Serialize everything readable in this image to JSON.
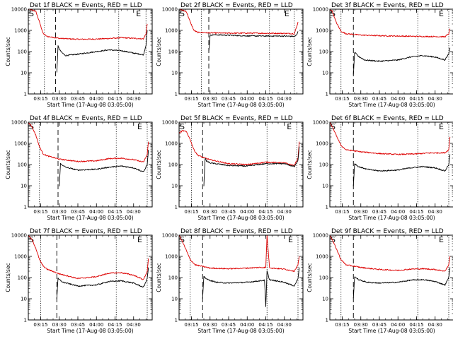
{
  "panel_titles": [
    "Det 1f BLACK = Events, RED = LLD",
    "Det 2f BLACK = Events, RED = LLD",
    "Det 3f BLACK = Events, RED = LLD",
    "Det 4f BLACK = Events, RED = LLD",
    "Det 5f BLACK = Events, RED = LLD",
    "Det 6f BLACK = Events, RED = LLD",
    "Det 7f BLACK = Events, RED = LLD",
    "Det 8f BLACK = Events, RED = LLD",
    "Det 9f BLACK = Events, RED = LLD"
  ],
  "corner_marks": {
    "start": "S",
    "end": "E"
  },
  "colors": {
    "events": "#000000",
    "lld": "#dd0000",
    "axes": "#000000"
  },
  "chart_data": {
    "type": "line",
    "xlabel": "Start Time (17-Aug-08 03:05:00)",
    "ylabel": "Counts/sec",
    "y_scale": "log",
    "ylim": [
      1,
      10000
    ],
    "y_ticks": [
      1,
      10,
      100,
      1000,
      10000
    ],
    "y_tick_labels": [
      "1",
      "10",
      "100",
      "1000",
      "10000"
    ],
    "xlim": [
      "03:05",
      "04:45"
    ],
    "x_ticks": [
      "03:15",
      "03:30",
      "03:45",
      "04:00",
      "04:15",
      "04:30"
    ],
    "x_tick_labels": [
      "03:15",
      "03:30",
      "03:45",
      "04:00",
      "04:15",
      "04:30"
    ],
    "panels": [
      {
        "detector": "1f",
        "vlines_dotted": [
          "03:18",
          "04:18",
          "04:40"
        ],
        "vline_dashed": "03:27",
        "series": [
          {
            "color": "red",
            "x": [
              "03:05",
              "03:08",
              "03:11",
              "03:14",
              "03:17",
              "03:20",
              "03:30",
              "03:45",
              "04:00",
              "04:15",
              "04:20",
              "04:30",
              "04:38",
              "04:40",
              "04:41"
            ],
            "y": [
              10000,
              9000,
              8000,
              2500,
              700,
              520,
              420,
              380,
              390,
              430,
              450,
              420,
              400,
              700,
              2000
            ]
          },
          {
            "color": "black",
            "x": [
              "03:28",
              "03:29",
              "03:30",
              "03:32",
              "03:35",
              "03:45",
              "04:00",
              "04:10",
              "04:20",
              "04:30",
              "04:38",
              "04:40",
              "04:41"
            ],
            "y": [
              10,
              180,
              130,
              90,
              65,
              75,
              100,
              120,
              110,
              85,
              70,
              200,
              1000
            ]
          }
        ]
      },
      {
        "detector": "2f",
        "vlines_dotted": [
          "03:23",
          "04:18",
          "04:38"
        ],
        "vline_dashed": "03:29",
        "series": [
          {
            "color": "red",
            "x": [
              "03:05",
              "03:08",
              "03:11",
              "03:14",
              "03:17",
              "03:20",
              "03:30",
              "03:45",
              "04:00",
              "04:15",
              "04:30",
              "04:38",
              "04:40",
              "04:41"
            ],
            "y": [
              10000,
              9000,
              7500,
              2500,
              1000,
              800,
              760,
              740,
              740,
              730,
              720,
              700,
              1500,
              2500
            ]
          },
          {
            "color": "black",
            "x": [
              "03:29",
              "03:30",
              "03:31",
              "03:33",
              "03:45",
              "04:00",
              "04:15",
              "04:30",
              "04:38",
              "04:40",
              "04:41"
            ],
            "y": [
              100,
              560,
              600,
              620,
              590,
              550,
              540,
              540,
              520,
              600,
              900
            ]
          }
        ]
      },
      {
        "detector": "3f",
        "vlines_dotted": [
          "03:14",
          "04:16",
          "04:41"
        ],
        "vline_dashed": "03:24",
        "series": [
          {
            "color": "red",
            "x": [
              "03:05",
              "03:07",
              "03:10",
              "03:14",
              "03:18",
              "03:30",
              "03:45",
              "04:00",
              "04:15",
              "04:30",
              "04:38",
              "04:41",
              "04:42"
            ],
            "y": [
              10000,
              8000,
              2500,
              900,
              700,
              600,
              560,
              540,
              520,
              510,
              500,
              700,
              1200
            ]
          },
          {
            "color": "black",
            "x": [
              "03:24",
              "03:25",
              "03:26",
              "03:28",
              "03:33",
              "03:45",
              "04:00",
              "04:10",
              "04:20",
              "04:30",
              "04:38",
              "04:41",
              "04:42"
            ],
            "y": [
              8,
              90,
              80,
              60,
              40,
              35,
              40,
              55,
              65,
              55,
              40,
              80,
              150
            ]
          }
        ]
      },
      {
        "detector": "4f",
        "vlines_dotted": [
          "03:14",
          "04:16",
          "04:41"
        ],
        "vline_dashed": "03:29",
        "series": [
          {
            "color": "red",
            "x": [
              "03:05",
              "03:08",
              "03:11",
              "03:14",
              "03:17",
              "03:20",
              "03:30",
              "03:45",
              "04:00",
              "04:10",
              "04:20",
              "04:30",
              "04:38",
              "04:41",
              "04:42"
            ],
            "y": [
              10000,
              6000,
              2500,
              700,
              320,
              260,
              180,
              140,
              150,
              190,
              200,
              170,
              130,
              300,
              1200
            ]
          },
          {
            "color": "black",
            "x": [
              "03:30",
              "03:31",
              "03:32",
              "03:35",
              "03:45",
              "04:00",
              "04:10",
              "04:20",
              "04:30",
              "04:38",
              "04:41",
              "04:42"
            ],
            "y": [
              10,
              110,
              100,
              75,
              55,
              60,
              75,
              85,
              70,
              45,
              100,
              500
            ]
          }
        ]
      },
      {
        "detector": "5f",
        "vlines_dotted": [
          "03:15",
          "04:16",
          "04:40"
        ],
        "vline_dashed": "03:24",
        "series": [
          {
            "color": "red",
            "x": [
              "03:05",
              "03:08",
              "03:11",
              "03:14",
              "03:17",
              "03:20",
              "03:24",
              "03:30",
              "03:45",
              "04:00",
              "04:15",
              "04:30",
              "04:38",
              "04:41",
              "04:42"
            ],
            "y": [
              3000,
              4000,
              3500,
              1500,
              500,
              280,
              220,
              170,
              110,
              100,
              130,
              120,
              90,
              200,
              1200
            ]
          },
          {
            "color": "black",
            "x": [
              "03:25",
              "03:26",
              "03:27",
              "03:30",
              "03:45",
              "04:00",
              "04:15",
              "04:30",
              "04:38",
              "04:41",
              "04:42"
            ],
            "y": [
              10,
              200,
              150,
              120,
              90,
              85,
              110,
              110,
              80,
              150,
              700
            ]
          }
        ]
      },
      {
        "detector": "6f",
        "vlines_dotted": [
          "03:14",
          "04:16",
          "04:41"
        ],
        "vline_dashed": "03:24",
        "series": [
          {
            "color": "red",
            "x": [
              "03:05",
              "03:07",
              "03:10",
              "03:14",
              "03:18",
              "03:30",
              "03:45",
              "04:00",
              "04:15",
              "04:25",
              "04:38",
              "04:41",
              "04:42"
            ],
            "y": [
              10000,
              6000,
              2500,
              800,
              500,
              400,
              330,
              300,
              320,
              350,
              360,
              500,
              2000
            ]
          },
          {
            "color": "black",
            "x": [
              "03:24",
              "03:25",
              "03:26",
              "03:28",
              "03:35",
              "03:45",
              "04:00",
              "04:10",
              "04:20",
              "04:30",
              "04:38",
              "04:41",
              "04:42"
            ],
            "y": [
              10,
              110,
              100,
              80,
              60,
              50,
              55,
              70,
              80,
              70,
              50,
              100,
              300
            ]
          }
        ]
      },
      {
        "detector": "7f",
        "vlines_dotted": [
          "03:15",
          "04:16",
          "04:41"
        ],
        "vline_dashed": "03:28",
        "series": [
          {
            "color": "red",
            "x": [
              "03:05",
              "03:08",
              "03:11",
              "03:14",
              "03:17",
              "03:20",
              "03:30",
              "03:45",
              "04:00",
              "04:10",
              "04:20",
              "04:30",
              "04:38",
              "04:41",
              "04:42"
            ],
            "y": [
              10000,
              6000,
              2500,
              700,
              350,
              250,
              150,
              90,
              110,
              160,
              170,
              130,
              80,
              200,
              800
            ]
          },
          {
            "color": "black",
            "x": [
              "03:28",
              "03:29",
              "03:30",
              "03:33",
              "03:45",
              "04:00",
              "04:10",
              "04:20",
              "04:30",
              "04:38",
              "04:41",
              "04:42"
            ],
            "y": [
              10,
              90,
              80,
              60,
              40,
              45,
              65,
              70,
              55,
              35,
              90,
              300
            ]
          }
        ]
      },
      {
        "detector": "8f",
        "vlines_dotted": [
          "03:14",
          "04:16",
          "04:41"
        ],
        "vline_dashed": "03:24",
        "series": [
          {
            "color": "red",
            "x": [
              "03:05",
              "03:07",
              "03:10",
              "03:14",
              "03:18",
              "03:30",
              "03:45",
              "04:00",
              "04:10",
              "04:15",
              "04:16",
              "04:18",
              "04:20",
              "04:30",
              "04:38",
              "04:41",
              "04:42"
            ],
            "y": [
              10000,
              6000,
              2500,
              700,
              400,
              280,
              260,
              280,
              300,
              300,
              10000,
              300,
              280,
              250,
              200,
              400,
              1000
            ]
          },
          {
            "color": "black",
            "x": [
              "03:24",
              "03:25",
              "03:26",
              "03:28",
              "03:35",
              "03:45",
              "04:00",
              "04:10",
              "04:14",
              "04:15",
              "04:16",
              "04:18",
              "04:20",
              "04:30",
              "04:38",
              "04:41",
              "04:42"
            ],
            "y": [
              10,
              110,
              100,
              80,
              60,
              55,
              60,
              70,
              75,
              4,
              200,
              80,
              75,
              60,
              40,
              90,
              300
            ]
          }
        ]
      },
      {
        "detector": "9f",
        "vlines_dotted": [
          "03:14",
          "04:16",
          "04:41"
        ],
        "vline_dashed": "03:24",
        "series": [
          {
            "color": "red",
            "x": [
              "03:05",
              "03:07",
              "03:10",
              "03:14",
              "03:18",
              "03:30",
              "03:45",
              "04:00",
              "04:10",
              "04:20",
              "04:30",
              "04:38",
              "04:41",
              "04:42"
            ],
            "y": [
              10000,
              6000,
              2500,
              700,
              400,
              300,
              240,
              220,
              250,
              260,
              240,
              200,
              400,
              1000
            ]
          },
          {
            "color": "black",
            "x": [
              "03:24",
              "03:25",
              "03:26",
              "03:28",
              "03:35",
              "03:45",
              "04:00",
              "04:10",
              "04:20",
              "04:30",
              "04:38",
              "04:41",
              "04:42"
            ],
            "y": [
              10,
              110,
              100,
              80,
              60,
              55,
              60,
              75,
              80,
              65,
              45,
              100,
              300
            ]
          }
        ]
      }
    ]
  }
}
